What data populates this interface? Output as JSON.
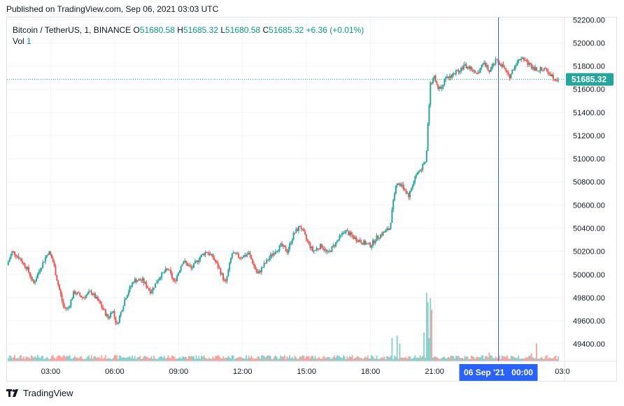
{
  "published": "Published on TradingView.com, Sep 06, 2021 03:03 UTC",
  "legend": {
    "symbol": "Bitcoin / TetherUS, 1, BINANCE",
    "o_label": "O",
    "o_value": "51680.58",
    "h_label": "H",
    "h_value": "51685.32",
    "l_label": "L",
    "l_value": "51680.58",
    "c_label": "C",
    "c_value": "51685.32",
    "change": "+6.36 (+0.01%)",
    "vol_label": "Vol",
    "vol_value": "1"
  },
  "colors": {
    "up": "#26a69a",
    "down": "#ef5350",
    "crosshair": "#2962ff",
    "price_tag": "#26a69a"
  },
  "footer": {
    "brand": "TradingView",
    "logo_icon": "tradingview-logo-icon"
  },
  "chart_data": {
    "type": "candlestick",
    "symbol": "BTCUSDT",
    "exchange": "BINANCE",
    "interval": "1",
    "last_price": 51685.32,
    "last_price_label": "51685.32",
    "ylim": [
      49250,
      52220
    ],
    "y_ticks": [
      52200,
      52000,
      51800,
      51600,
      51400,
      51200,
      51000,
      50800,
      50600,
      50400,
      50200,
      50000,
      49800,
      49600,
      49400
    ],
    "y_tick_labels": [
      "52200.00",
      "52000.00",
      "51800.00",
      "51600.00",
      "51400.00",
      "51200.00",
      "51000.00",
      "50800.00",
      "50600.00",
      "50400.00",
      "50200.00",
      "50000.00",
      "49800.00",
      "49600.00",
      "49400.00"
    ],
    "x_hours": [
      3,
      6,
      9,
      12,
      15,
      18,
      21,
      24,
      27
    ],
    "x_tick_labels": [
      "03:00",
      "06:00",
      "09:00",
      "12:00",
      "15:00",
      "18:00",
      "21:00",
      "00:00",
      "03:0"
    ],
    "x_range_hours": [
      0.95,
      27.1
    ],
    "crosshair_hour": 24.0,
    "crosshair_label": "06 Sep '21   00:00",
    "price_path": [
      [
        0.95,
        50080
      ],
      [
        1.2,
        50200
      ],
      [
        1.5,
        50150
      ],
      [
        1.9,
        50050
      ],
      [
        2.2,
        49920
      ],
      [
        2.5,
        50050
      ],
      [
        2.9,
        50200
      ],
      [
        3.1,
        50120
      ],
      [
        3.3,
        49950
      ],
      [
        3.6,
        49720
      ],
      [
        3.8,
        49700
      ],
      [
        4.1,
        49850
      ],
      [
        4.5,
        49800
      ],
      [
        4.9,
        49850
      ],
      [
        5.3,
        49750
      ],
      [
        5.7,
        49620
      ],
      [
        5.9,
        49700
      ],
      [
        6.1,
        49560
      ],
      [
        6.5,
        49800
      ],
      [
        6.9,
        49950
      ],
      [
        7.3,
        49950
      ],
      [
        7.7,
        49850
      ],
      [
        8.1,
        49980
      ],
      [
        8.5,
        50050
      ],
      [
        8.8,
        49930
      ],
      [
        9.2,
        50120
      ],
      [
        9.6,
        50050
      ],
      [
        10.0,
        50150
      ],
      [
        10.3,
        50200
      ],
      [
        10.6,
        50150
      ],
      [
        10.9,
        50050
      ],
      [
        11.2,
        49920
      ],
      [
        11.5,
        50180
      ],
      [
        11.9,
        50150
      ],
      [
        12.3,
        50180
      ],
      [
        12.7,
        50000
      ],
      [
        13.0,
        50080
      ],
      [
        13.4,
        50180
      ],
      [
        13.8,
        50250
      ],
      [
        14.1,
        50200
      ],
      [
        14.4,
        50350
      ],
      [
        14.7,
        50420
      ],
      [
        15.0,
        50300
      ],
      [
        15.3,
        50200
      ],
      [
        15.7,
        50250
      ],
      [
        16.0,
        50180
      ],
      [
        16.4,
        50280
      ],
      [
        16.8,
        50380
      ],
      [
        17.2,
        50320
      ],
      [
        17.6,
        50280
      ],
      [
        18.0,
        50250
      ],
      [
        18.3,
        50320
      ],
      [
        18.6,
        50360
      ],
      [
        18.9,
        50400
      ],
      [
        19.2,
        50800
      ],
      [
        19.5,
        50760
      ],
      [
        19.8,
        50680
      ],
      [
        20.1,
        50850
      ],
      [
        20.4,
        50920
      ],
      [
        20.6,
        50980
      ],
      [
        20.8,
        51650
      ],
      [
        21.0,
        51700
      ],
      [
        21.2,
        51600
      ],
      [
        21.5,
        51680
      ],
      [
        21.8,
        51720
      ],
      [
        22.1,
        51760
      ],
      [
        22.4,
        51800
      ],
      [
        22.7,
        51780
      ],
      [
        23.0,
        51720
      ],
      [
        23.3,
        51820
      ],
      [
        23.6,
        51760
      ],
      [
        23.9,
        51850
      ],
      [
        24.2,
        51800
      ],
      [
        24.5,
        51700
      ],
      [
        24.8,
        51820
      ],
      [
        25.1,
        51880
      ],
      [
        25.4,
        51820
      ],
      [
        25.7,
        51780
      ],
      [
        26.0,
        51770
      ],
      [
        26.3,
        51760
      ],
      [
        26.6,
        51700
      ],
      [
        26.85,
        51685
      ]
    ]
  }
}
